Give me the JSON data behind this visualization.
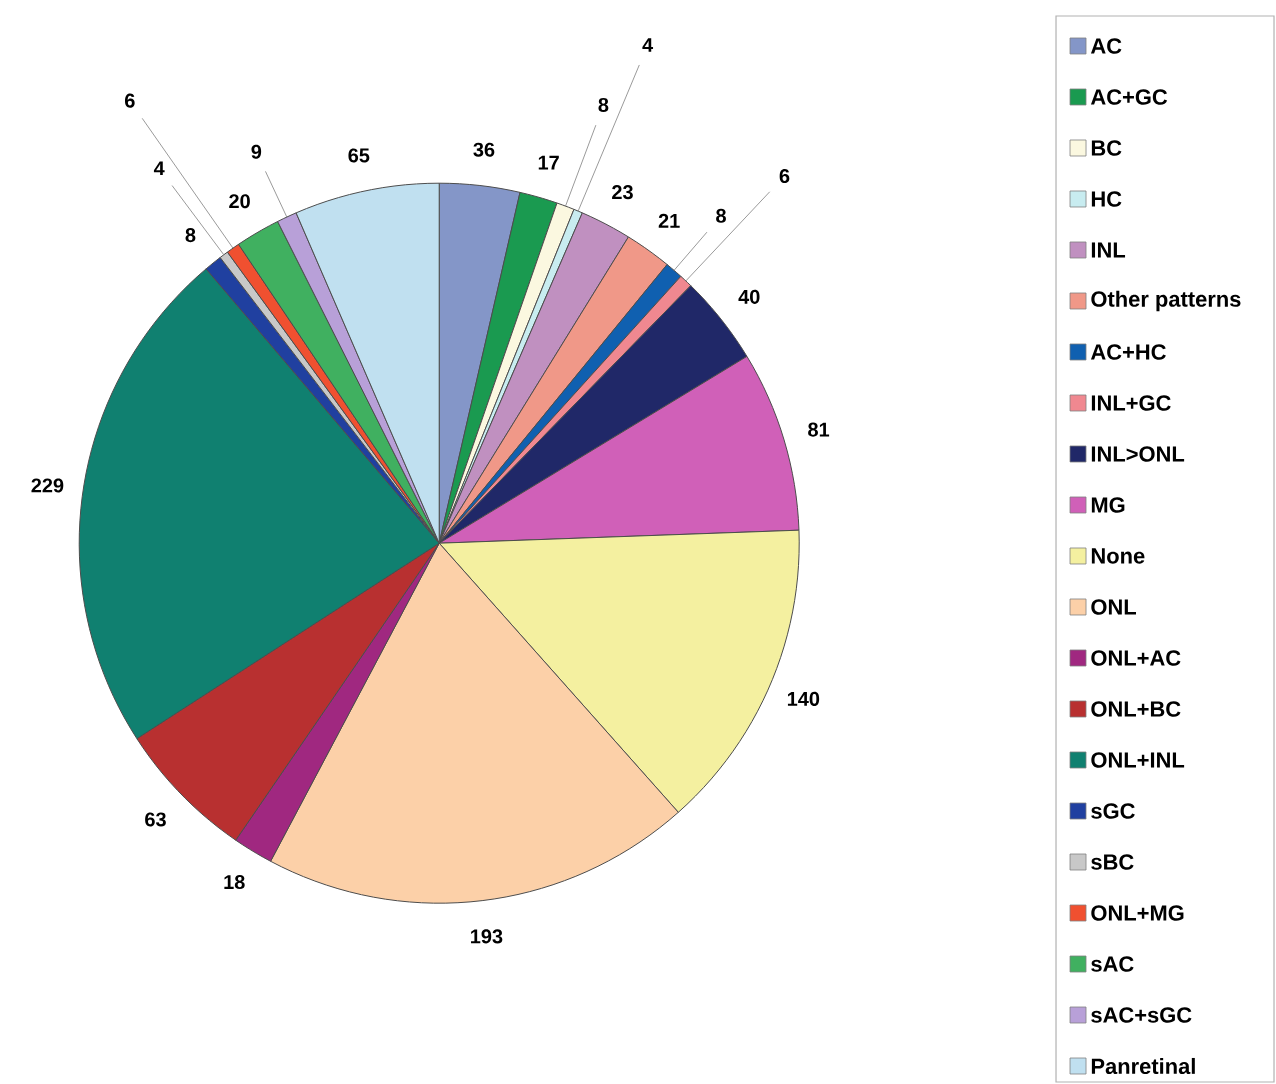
{
  "chart_data": {
    "type": "pie",
    "data_labels": true,
    "legend": "right",
    "categories": [
      "AC",
      "AC+GC",
      "BC",
      "HC",
      "INL",
      "Other patterns",
      "AC+HC",
      "INL+GC",
      "INL>ONL",
      "MG",
      "None",
      "ONL",
      "ONL+AC",
      "ONL+BC",
      "ONL+INL",
      "sGC",
      "sBC",
      "ONL+MG",
      "sAC",
      "sAC+sGC",
      "Panretinal"
    ],
    "values": [
      36,
      17,
      8,
      4,
      23,
      21,
      8,
      6,
      40,
      81,
      140,
      193,
      18,
      63,
      229,
      8,
      4,
      6,
      20,
      9,
      65
    ],
    "colors": [
      "#8496c8",
      "#1a9a50",
      "#fbf8e0",
      "#c8ecf0",
      "#c090c0",
      "#f09888",
      "#1060b0",
      "#f08890",
      "#202868",
      "#d060b8",
      "#f4f0a0",
      "#fcd0a8",
      "#a02880",
      "#b83030",
      "#108070",
      "#2040a0",
      "#c8c8c8",
      "#f05030",
      "#40b060",
      "#b8a0d8",
      "#c0e0f0"
    ]
  }
}
